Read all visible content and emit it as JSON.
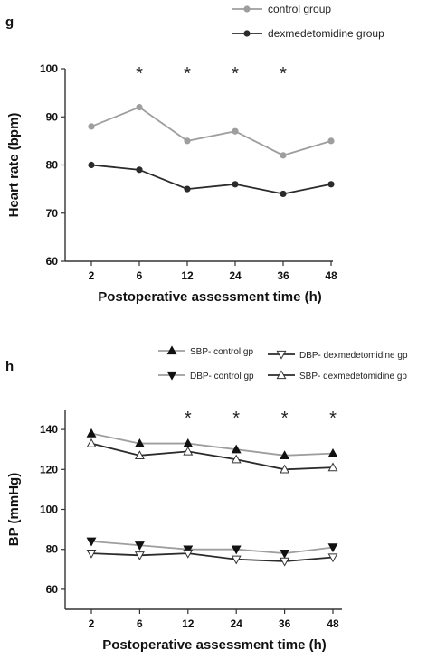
{
  "chart_data": [
    {
      "panel": "g",
      "type": "line",
      "xlabel": "Postoperative assessment time (h)",
      "ylabel": "Heart rate (bpm)",
      "categories": [
        "2",
        "6",
        "12",
        "24",
        "36",
        "48"
      ],
      "ylim": [
        60,
        100
      ],
      "yticks": [
        60,
        70,
        80,
        90,
        100
      ],
      "legend_position": "top-right",
      "grid": false,
      "significance": [
        "",
        "*",
        "*",
        "*",
        "*",
        ""
      ],
      "series": [
        {
          "name": "control group",
          "values": [
            88,
            92,
            85,
            87,
            82,
            85
          ],
          "color": "#9e9e9e",
          "marker": "circle"
        },
        {
          "name": "dexmedetomidine group",
          "values": [
            80,
            79,
            75,
            76,
            74,
            76
          ],
          "color": "#2b2b2b",
          "marker": "circle"
        }
      ]
    },
    {
      "panel": "h",
      "type": "line",
      "xlabel": "Postoperative assessment time (h)",
      "ylabel": "BP (mmHg)",
      "categories": [
        "2",
        "6",
        "12",
        "24",
        "36",
        "48"
      ],
      "ylim": [
        50,
        150
      ],
      "yticks": [
        60,
        80,
        100,
        120,
        140
      ],
      "legend_position": "top-right",
      "grid": false,
      "significance": [
        "",
        "",
        "*",
        "*",
        "*",
        "*"
      ],
      "series": [
        {
          "name": "SBP- control gp",
          "values": [
            138,
            133,
            133,
            130,
            127,
            128
          ],
          "color": "#9e9e9e",
          "marker": "triangle-up-filled"
        },
        {
          "name": "DBP- control gp",
          "values": [
            84,
            82,
            80,
            80,
            78,
            81
          ],
          "color": "#9e9e9e",
          "marker": "triangle-down-filled"
        },
        {
          "name": "DBP- dexmedetomidine gp",
          "values": [
            78,
            77,
            78,
            75,
            74,
            76
          ],
          "color": "#2b2b2b",
          "marker": "triangle-down-open"
        },
        {
          "name": "SBP- dexmedetomidine gp",
          "values": [
            133,
            127,
            129,
            125,
            120,
            121
          ],
          "color": "#2b2b2b",
          "marker": "triangle-up-open"
        }
      ]
    }
  ]
}
